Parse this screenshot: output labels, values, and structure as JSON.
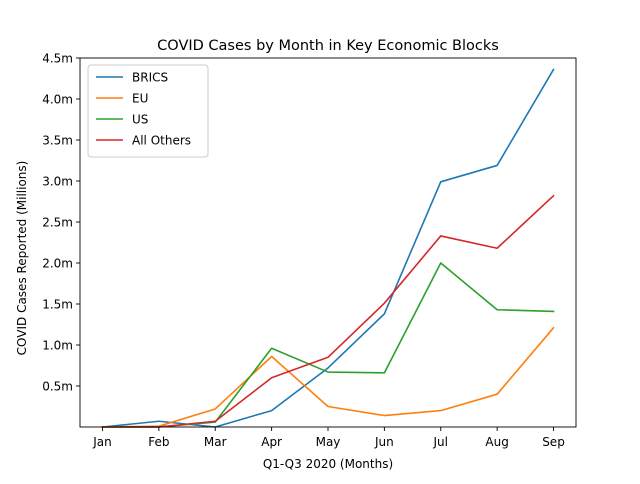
{
  "chart_data": {
    "type": "line",
    "title": "COVID Cases by Month in Key Economic Blocks",
    "xlabel": "Q1-Q3 2020 (Months)",
    "ylabel": "COVID Cases Reported (Millions)",
    "categories": [
      "Jan",
      "Feb",
      "Mar",
      "Apr",
      "May",
      "Jun",
      "Jul",
      "Aug",
      "Sep"
    ],
    "ylim": [
      0,
      4500000
    ],
    "yticks": [
      {
        "value": 500000,
        "label": "0.5m"
      },
      {
        "value": 1000000,
        "label": "1.0m"
      },
      {
        "value": 1500000,
        "label": "1.5m"
      },
      {
        "value": 2000000,
        "label": "2.0m"
      },
      {
        "value": 2500000,
        "label": "2.5m"
      },
      {
        "value": 3000000,
        "label": "3.0m"
      },
      {
        "value": 3500000,
        "label": "3.5m"
      },
      {
        "value": 4000000,
        "label": "4.0m"
      },
      {
        "value": 4500000,
        "label": "4.5m"
      }
    ],
    "grid": false,
    "legend_position": "top-left",
    "series": [
      {
        "name": "BRICS",
        "color": "#1f77b4",
        "values": [
          0,
          70000,
          0,
          200000,
          720000,
          1380000,
          2990000,
          3190000,
          4360000
        ]
      },
      {
        "name": "EU",
        "color": "#ff7f0e",
        "values": [
          0,
          10000,
          220000,
          860000,
          250000,
          140000,
          200000,
          400000,
          1210000
        ]
      },
      {
        "name": "US",
        "color": "#2ca02c",
        "values": [
          0,
          0,
          60000,
          960000,
          670000,
          660000,
          2000000,
          1430000,
          1410000
        ]
      },
      {
        "name": "All Others",
        "color": "#d62728",
        "values": [
          0,
          0,
          70000,
          600000,
          850000,
          1510000,
          2330000,
          2180000,
          2820000
        ]
      }
    ]
  }
}
